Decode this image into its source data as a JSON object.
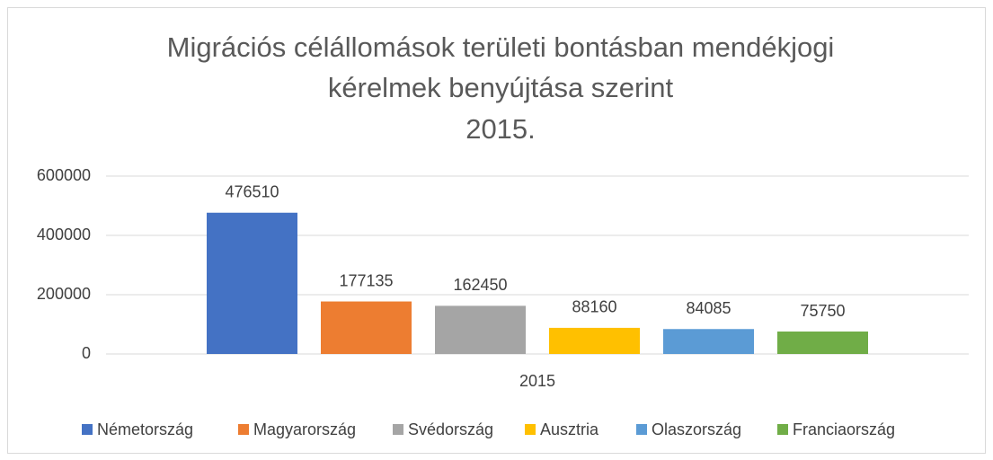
{
  "chart_data": {
    "type": "bar",
    "title": [
      "Migrációs célállomások területi bontásban mendékjogi",
      "kérelmek benyújtása szerint",
      "2015."
    ],
    "categories": [
      "2015"
    ],
    "series": [
      {
        "name": "Németország",
        "color": "#4472c4",
        "values": [
          476510
        ]
      },
      {
        "name": "Magyarország",
        "color": "#ed7d31",
        "values": [
          177135
        ]
      },
      {
        "name": "Svédország",
        "color": "#a5a5a5",
        "values": [
          162450
        ]
      },
      {
        "name": "Ausztria",
        "color": "#ffc000",
        "values": [
          88160
        ]
      },
      {
        "name": "Olaszország",
        "color": "#5b9bd5",
        "values": [
          84085
        ]
      },
      {
        "name": "Franciaország",
        "color": "#70ad47",
        "values": [
          75750
        ]
      }
    ],
    "ylim": [
      0,
      600000
    ],
    "yticks": [
      0,
      200000,
      400000,
      600000
    ],
    "grid": true,
    "legend": "bottom"
  }
}
